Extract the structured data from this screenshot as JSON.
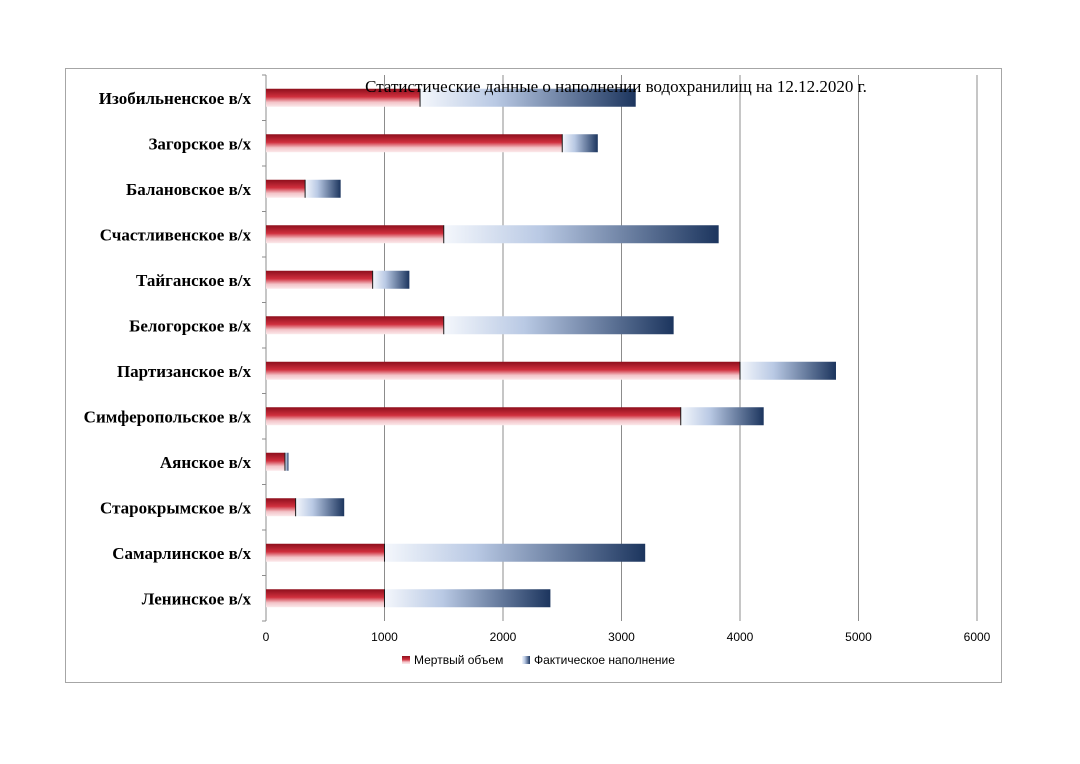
{
  "chart_data": {
    "type": "bar",
    "orientation": "horizontal",
    "stacked": true,
    "title": "Статистические данные о наполнении водохранилищ на 12.12.2020 г.",
    "categories": [
      "Изобильненское в/х",
      "Загорское в/х",
      "Балановское в/х",
      "Счастливенское в/х",
      "Тайганское в/х",
      "Белогорское в/х",
      "Партизанское в/х",
      "Симферопольское в/х",
      "Аянское в/х",
      "Старокрымское в/х",
      "Самарлинское в/х",
      "Ленинское в/х"
    ],
    "series": [
      {
        "name": "Мертвый объем",
        "color": "#c0202c",
        "values": [
          1300,
          2500,
          330,
          1500,
          900,
          1500,
          4000,
          3500,
          160,
          250,
          1000,
          1000
        ]
      },
      {
        "name": "Фактическое наполнение",
        "color": "#1f3864",
        "values": [
          1820,
          300,
          300,
          2320,
          310,
          1940,
          810,
          700,
          30,
          410,
          2200,
          1400
        ]
      }
    ],
    "xlim": [
      0,
      6000
    ],
    "xticks": [
      "0",
      "1000",
      "2000",
      "3000",
      "4000",
      "5000",
      "6000"
    ],
    "grid": true,
    "legend": "bottom"
  }
}
